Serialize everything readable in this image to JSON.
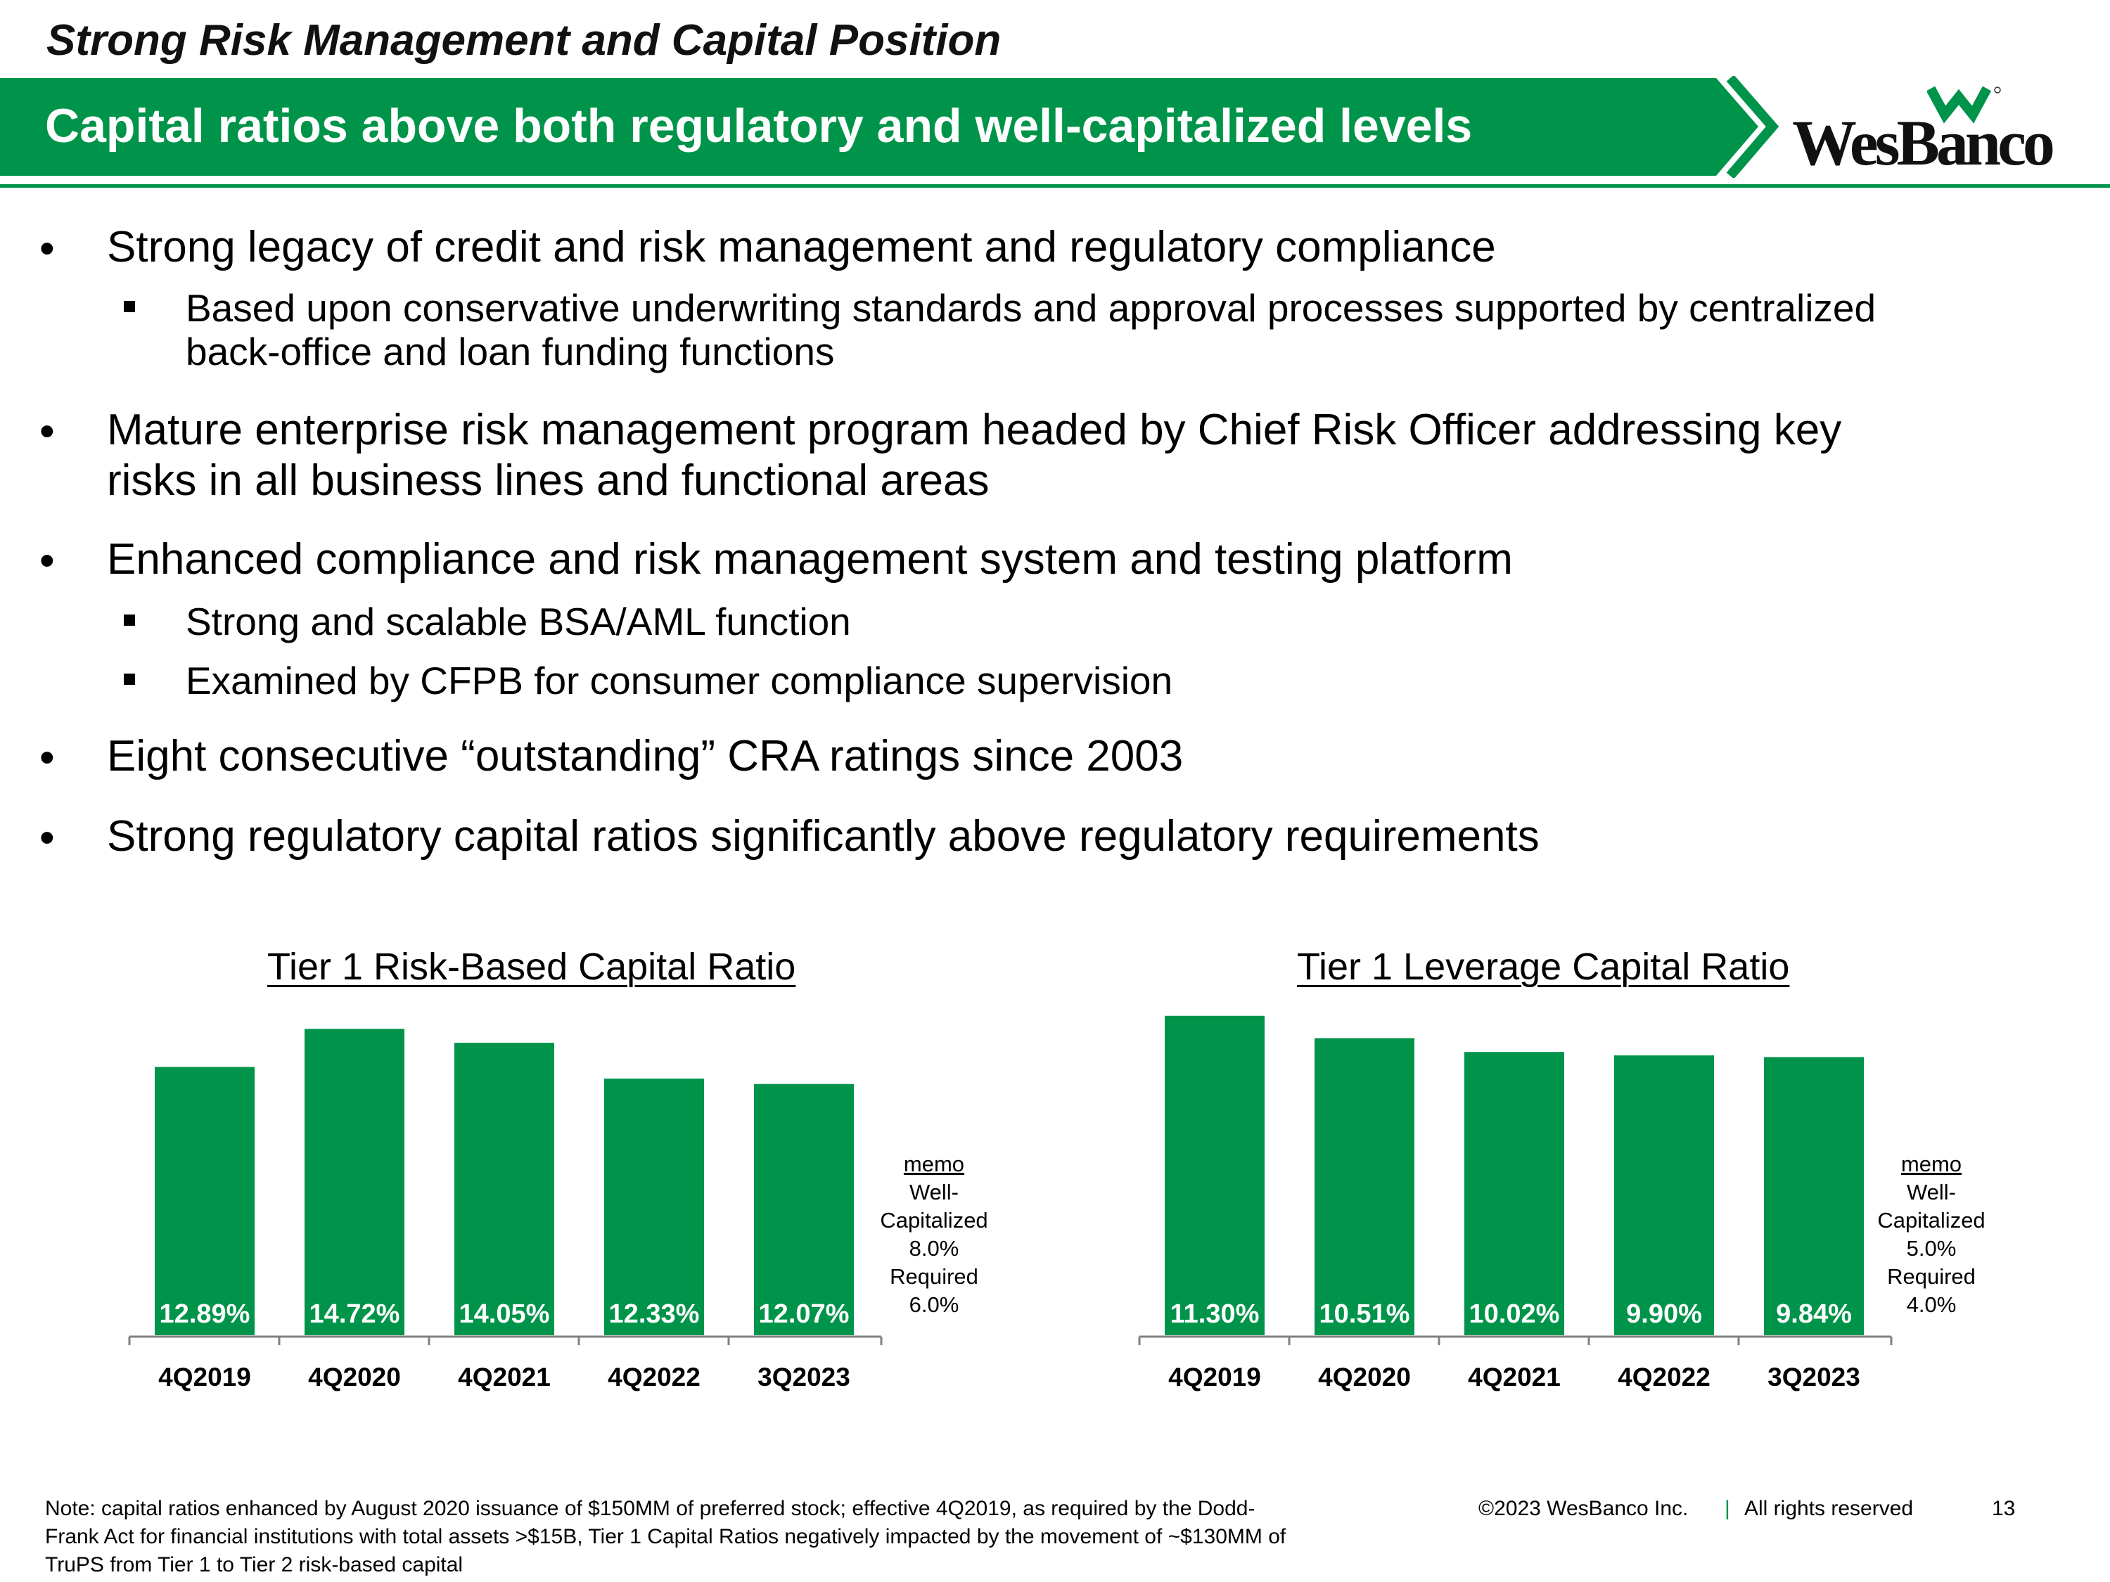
{
  "header": {
    "title": "Strong Risk Management and Capital Position",
    "banner": "Capital ratios above both regulatory and well-capitalized levels",
    "logo_text": "WesBanco",
    "brand_color": "#00944a"
  },
  "bullets": [
    {
      "text": "Strong legacy of credit and risk management and regulatory compliance"
    },
    {
      "text": "Based upon conservative underwriting standards and approval processes supported by centralized",
      "text2": "back-office and loan funding functions"
    },
    {
      "text": "Mature enterprise risk management program headed by Chief Risk Officer addressing key",
      "text2": "risks in all business lines and functional areas"
    },
    {
      "text": "Enhanced compliance and risk management system and testing platform"
    },
    {
      "text": "Strong and scalable BSA/AML function"
    },
    {
      "text": "Examined by CFPB for consumer compliance supervision"
    },
    {
      "text": "Eight consecutive “outstanding” CRA ratings since 2003"
    },
    {
      "text": "Strong regulatory capital ratios significantly above regulatory requirements"
    }
  ],
  "chart_data": [
    {
      "type": "bar",
      "title": "Tier 1 Risk-Based Capital Ratio",
      "categories": [
        "4Q2019",
        "4Q2020",
        "4Q2021",
        "4Q2022",
        "3Q2023"
      ],
      "values": [
        12.89,
        14.72,
        14.05,
        12.33,
        12.07
      ],
      "labels": [
        "12.89%",
        "14.72%",
        "14.05%",
        "12.33%",
        "12.07%"
      ],
      "color": "#00944a",
      "memo": [
        "memo",
        "Well-",
        "Capitalized",
        "8.0%",
        "Required",
        "6.0%"
      ]
    },
    {
      "type": "bar",
      "title": "Tier 1 Leverage Capital Ratio",
      "categories": [
        "4Q2019",
        "4Q2020",
        "4Q2021",
        "4Q2022",
        "3Q2023"
      ],
      "values": [
        11.3,
        10.51,
        10.02,
        9.9,
        9.84
      ],
      "labels": [
        "11.30%",
        "10.51%",
        "10.02%",
        "9.90%",
        "9.84%"
      ],
      "color": "#00944a",
      "memo": [
        "memo",
        "Well-",
        "Capitalized",
        "5.0%",
        "Required",
        "4.0%"
      ]
    }
  ],
  "footer": {
    "note_lines": [
      "Note: capital ratios enhanced by August 2020 issuance of $150MM of preferred stock; effective 4Q2019, as required by the Dodd-",
      "Frank Act for financial institutions with total assets >$15B, Tier 1 Capital Ratios negatively impacted by the movement of ~$130MM of",
      "TruPS from Tier 1 to Tier 2 risk-based capital"
    ],
    "copyright": "©2023 WesBanco Inc.",
    "separator": "|",
    "rights": "All rights reserved",
    "page_number": "13"
  }
}
